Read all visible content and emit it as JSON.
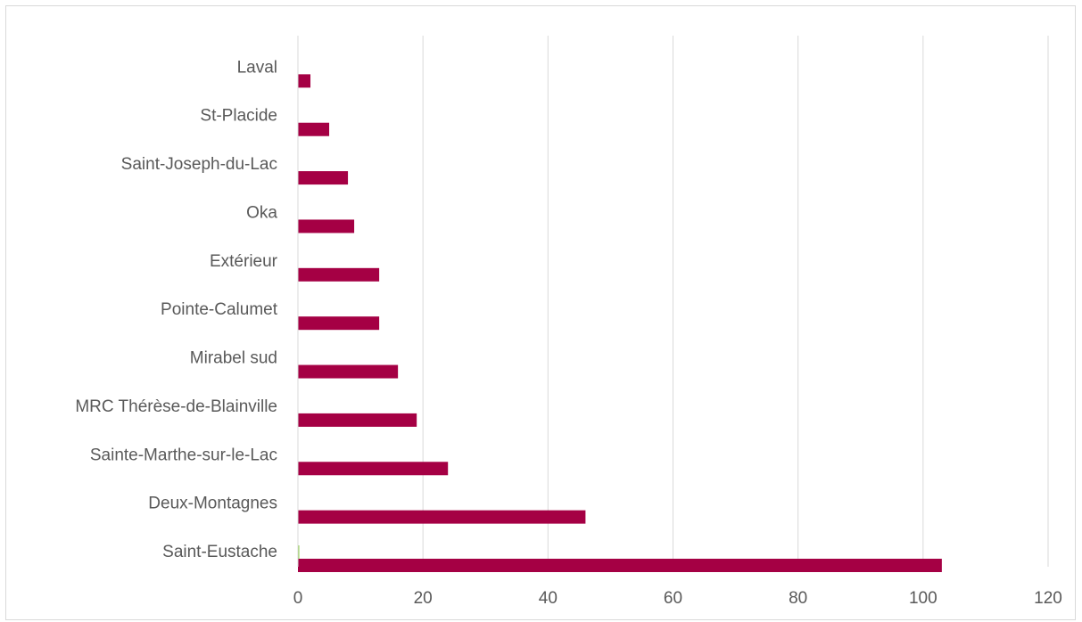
{
  "chart_data": {
    "type": "bar",
    "orientation": "horizontal",
    "categories": [
      "Saint-Eustache",
      "Deux-Montagnes",
      "Sainte-Marthe-sur-le-Lac",
      "MRC Thérèse-de-Blainville",
      "Mirabel sud",
      "Pointe-Calumet",
      "Extérieur",
      "Oka",
      "Saint-Joseph-du-Lac",
      "St-Placide",
      "Laval"
    ],
    "series": [
      {
        "color": "#a50044",
        "values": [
          103,
          46,
          24,
          19,
          16,
          13,
          13,
          9,
          8,
          5,
          2
        ]
      },
      {
        "color": "#92d050",
        "values": [
          0.2,
          0,
          0,
          0,
          0,
          0,
          0,
          0,
          0,
          0,
          0
        ]
      }
    ],
    "title": "",
    "xlabel": "",
    "ylabel": "",
    "xlim": [
      0,
      120
    ],
    "xticks": [
      "0",
      "20",
      "40",
      "60",
      "80",
      "100",
      "120"
    ],
    "grid": "vertical",
    "legend": "none"
  }
}
